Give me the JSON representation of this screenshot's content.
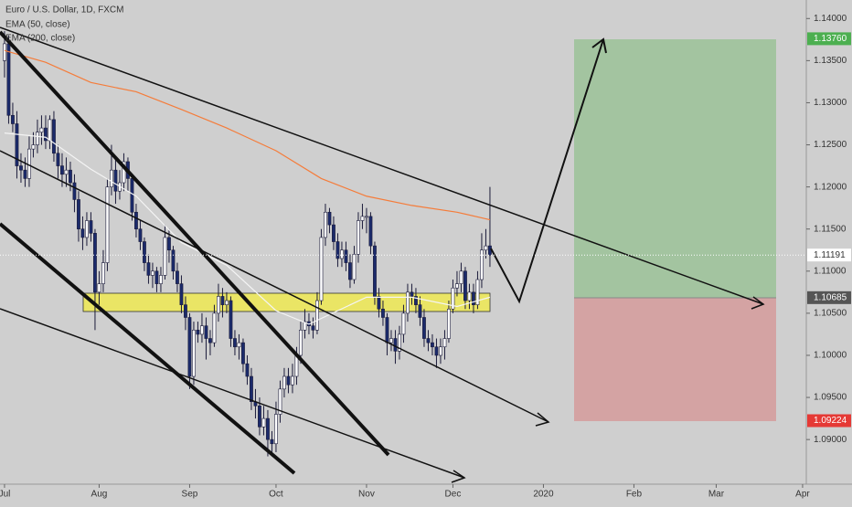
{
  "chart_data": {
    "type": "candlestick",
    "title": "Euro / U.S. Dollar, 1D, FXCM",
    "open": [
      1.135,
      1.137,
      1.1285,
      1.1275,
      1.1225,
      1.122,
      1.121,
      1.1245,
      1.125,
      1.1265,
      1.127,
      1.1255,
      1.128,
      1.124,
      1.1225,
      1.1215,
      1.122,
      1.1205,
      1.1185,
      1.115,
      1.114,
      1.116,
      1.1145,
      1.1075,
      1.1085,
      1.111,
      1.12,
      1.122,
      1.1195,
      1.1205,
      1.123,
      1.121,
      1.117,
      1.115,
      1.1135,
      1.111,
      1.1095,
      1.11,
      1.1085,
      1.1095,
      1.114,
      1.1125,
      1.11,
      1.1085,
      1.106,
      1.1045,
      1.0975,
      1.103,
      1.1025,
      1.1035,
      1.102,
      1.1015,
      1.105,
      1.107,
      1.106,
      1.1065,
      1.102,
      1.101,
      1.1015,
      1.099,
      1.0975,
      1.0945,
      1.094,
      1.0915,
      1.0925,
      1.09,
      1.0895,
      1.093,
      1.096,
      1.0975,
      1.0965,
      1.0975,
      1.1,
      1.103,
      1.104,
      1.1035,
      1.103,
      1.1065,
      1.114,
      1.117,
      1.1155,
      1.1135,
      1.1115,
      1.1125,
      1.111,
      1.109,
      1.112,
      1.116,
      1.1165,
      1.1165,
      1.113,
      1.107,
      1.1055,
      1.1045,
      1.1015,
      1.102,
      1.1005,
      1.1025,
      1.105,
      1.1075,
      1.107,
      1.106,
      1.1045,
      1.102,
      1.1015,
      1.101,
      1.1,
      1.101,
      1.102,
      1.1055,
      1.108,
      1.1085,
      1.11,
      1.1065,
      1.1075,
      1.106,
      1.109,
      1.1125,
      1.113
    ],
    "high": [
      1.1385,
      1.138,
      1.13,
      1.129,
      1.124,
      1.1235,
      1.126,
      1.1265,
      1.128,
      1.1285,
      1.1285,
      1.1285,
      1.129,
      1.125,
      1.124,
      1.1235,
      1.123,
      1.1215,
      1.1195,
      1.1165,
      1.117,
      1.117,
      1.115,
      1.11,
      1.1125,
      1.121,
      1.125,
      1.1235,
      1.122,
      1.124,
      1.1235,
      1.1215,
      1.118,
      1.116,
      1.114,
      1.112,
      1.111,
      1.1105,
      1.1105,
      1.1155,
      1.115,
      1.113,
      1.111,
      1.1095,
      1.107,
      1.105,
      1.104,
      1.104,
      1.105,
      1.1045,
      1.103,
      1.106,
      1.1085,
      1.108,
      1.1075,
      1.107,
      1.103,
      1.1025,
      1.102,
      1.1,
      1.0985,
      1.096,
      1.095,
      1.094,
      1.0935,
      1.091,
      1.0945,
      1.097,
      1.0985,
      1.0985,
      1.099,
      1.101,
      1.104,
      1.1055,
      1.105,
      1.1045,
      1.1075,
      1.115,
      1.118,
      1.1175,
      1.1165,
      1.1145,
      1.1135,
      1.1135,
      1.112,
      1.113,
      1.117,
      1.118,
      1.1175,
      1.117,
      1.1135,
      1.108,
      1.1065,
      1.105,
      1.103,
      1.103,
      1.1035,
      1.106,
      1.1085,
      1.1085,
      1.108,
      1.107,
      1.1055,
      1.103,
      1.1025,
      1.102,
      1.102,
      1.103,
      1.1065,
      1.109,
      1.11,
      1.111,
      1.1105,
      1.1085,
      1.1085,
      1.11,
      1.1145,
      1.115,
      1.12
    ],
    "low": [
      1.133,
      1.1275,
      1.1265,
      1.121,
      1.1205,
      1.12,
      1.12,
      1.1235,
      1.124,
      1.125,
      1.1245,
      1.1245,
      1.123,
      1.121,
      1.12,
      1.12,
      1.1195,
      1.117,
      1.1135,
      1.1125,
      1.113,
      1.1135,
      1.103,
      1.106,
      1.1075,
      1.11,
      1.119,
      1.118,
      1.1185,
      1.1195,
      1.1195,
      1.116,
      1.114,
      1.1125,
      1.11,
      1.1085,
      1.108,
      1.1075,
      1.1075,
      1.109,
      1.111,
      1.109,
      1.1075,
      1.105,
      1.103,
      1.096,
      1.0965,
      1.1015,
      1.1015,
      1.0995,
      1.1,
      1.101,
      1.104,
      1.1045,
      1.105,
      1.101,
      1.1,
      1.0995,
      1.098,
      1.0965,
      1.0935,
      1.0925,
      1.0905,
      1.0905,
      1.088,
      1.088,
      1.0885,
      1.092,
      1.095,
      1.0955,
      1.0955,
      1.0965,
      1.099,
      1.102,
      1.1025,
      1.102,
      1.1025,
      1.106,
      1.113,
      1.1145,
      1.1125,
      1.1105,
      1.1105,
      1.11,
      1.108,
      1.1085,
      1.111,
      1.115,
      1.1145,
      1.112,
      1.106,
      1.1045,
      1.1035,
      1.1,
      1.1005,
      1.099,
      1.0995,
      1.1015,
      1.104,
      1.106,
      1.105,
      1.1035,
      1.101,
      1.1005,
      1.1,
      1.0985,
      1.099,
      1.0995,
      1.1015,
      1.105,
      1.107,
      1.1075,
      1.1055,
      1.1055,
      1.105,
      1.1055,
      1.108,
      1.1115,
      1.1105
    ],
    "close": [
      1.137,
      1.1285,
      1.1275,
      1.1225,
      1.122,
      1.121,
      1.1245,
      1.125,
      1.1265,
      1.127,
      1.1255,
      1.128,
      1.124,
      1.1225,
      1.1215,
      1.122,
      1.1205,
      1.1185,
      1.115,
      1.114,
      1.116,
      1.1145,
      1.1075,
      1.1085,
      1.111,
      1.12,
      1.122,
      1.1195,
      1.1205,
      1.123,
      1.121,
      1.117,
      1.115,
      1.1135,
      1.111,
      1.1095,
      1.11,
      1.1085,
      1.1095,
      1.114,
      1.1125,
      1.11,
      1.1085,
      1.106,
      1.1045,
      1.0975,
      1.103,
      1.1025,
      1.1035,
      1.102,
      1.1015,
      1.105,
      1.107,
      1.106,
      1.1065,
      1.102,
      1.101,
      1.1015,
      1.099,
      1.0975,
      1.0945,
      1.094,
      1.0915,
      1.0925,
      1.09,
      1.0895,
      1.093,
      1.096,
      1.0975,
      1.0965,
      1.0975,
      1.1,
      1.103,
      1.104,
      1.1035,
      1.103,
      1.1065,
      1.114,
      1.117,
      1.1155,
      1.1135,
      1.1115,
      1.1125,
      1.111,
      1.109,
      1.112,
      1.116,
      1.1165,
      1.1165,
      1.113,
      1.107,
      1.1055,
      1.1045,
      1.1015,
      1.102,
      1.1005,
      1.1025,
      1.105,
      1.1075,
      1.107,
      1.106,
      1.1045,
      1.102,
      1.1015,
      1.101,
      1.1,
      1.101,
      1.102,
      1.1055,
      1.108,
      1.1085,
      1.11,
      1.1065,
      1.1075,
      1.106,
      1.109,
      1.1125,
      1.113,
      1.1119
    ],
    "up_color": "#ffffff",
    "down_color": "#1b2a6b",
    "series": [
      {
        "name": "EMA (50, close)",
        "color": "#f4f4f4",
        "x": [
          0,
          10,
          21,
          32,
          43,
          54,
          66,
          74,
          88,
          99,
          110,
          118
        ],
        "values": [
          1.1264,
          1.1259,
          1.1221,
          1.1189,
          1.1134,
          1.1107,
          1.1053,
          1.1037,
          1.1069,
          1.1069,
          1.1058,
          1.1069
        ]
      },
      {
        "name": "EMA (200, close)",
        "color": "#f57c3a",
        "x": [
          0,
          10,
          21,
          32,
          43,
          54,
          66,
          77,
          88,
          99,
          110,
          118
        ],
        "values": [
          1.1362,
          1.1348,
          1.1324,
          1.1313,
          1.1292,
          1.127,
          1.1243,
          1.121,
          1.1189,
          1.1178,
          1.117,
          1.1161
        ]
      }
    ],
    "xlim": [
      -1.1,
      194.9
    ],
    "xticks": [
      {
        "value": 0,
        "label": "Jul"
      },
      {
        "value": 23,
        "label": "Aug"
      },
      {
        "value": 45,
        "label": "Sep"
      },
      {
        "value": 66,
        "label": "Oct"
      },
      {
        "value": 88,
        "label": "Nov"
      },
      {
        "value": 109,
        "label": "Dec"
      },
      {
        "value": 131,
        "label": "2020"
      },
      {
        "value": 153,
        "label": "Feb"
      },
      {
        "value": 173,
        "label": "Mar"
      },
      {
        "value": 194,
        "label": "Apr"
      }
    ],
    "ylim": [
      1.0847,
      1.1422
    ],
    "yticks": [
      {
        "value": 1.14,
        "label": "1.14000"
      },
      {
        "value": 1.135,
        "label": "1.13500"
      },
      {
        "value": 1.13,
        "label": "1.13000"
      },
      {
        "value": 1.125,
        "label": "1.12500"
      },
      {
        "value": 1.12,
        "label": "1.12000"
      },
      {
        "value": 1.115,
        "label": "1.11500"
      },
      {
        "value": 1.11,
        "label": "1.11000"
      },
      {
        "value": 1.105,
        "label": "1.10500"
      },
      {
        "value": 1.1,
        "label": "1.10000"
      },
      {
        "value": 1.095,
        "label": "1.09500"
      },
      {
        "value": 1.09,
        "label": "1.09000"
      }
    ],
    "price_labels": [
      {
        "value": 1.1376,
        "label": "1.13760",
        "color": "#4caf50"
      },
      {
        "value": 1.11191,
        "label": "1.11191",
        "color": "#ffffff"
      },
      {
        "value": 1.10685,
        "label": "1.10685",
        "color": "#555555"
      },
      {
        "value": 1.09224,
        "label": "1.09224",
        "color": "#e53935"
      }
    ]
  }
}
